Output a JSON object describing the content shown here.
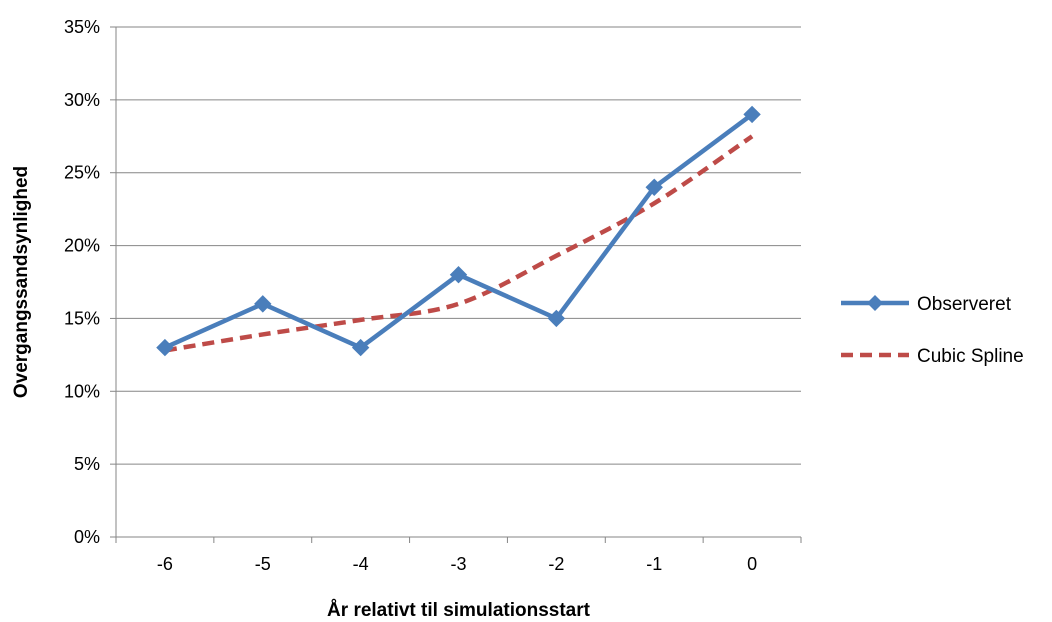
{
  "chart_data": {
    "type": "line",
    "title": "",
    "xlabel": "År relativt til simulationsstart",
    "ylabel": "Overgangssandsynlighed",
    "x": [
      -6,
      -5,
      -4,
      -3,
      -2,
      -1,
      0
    ],
    "x_tick_labels": [
      "-6",
      "-5",
      "-4",
      "-3",
      "-2",
      "-1",
      "0"
    ],
    "y_ticks": [
      0,
      5,
      10,
      15,
      20,
      25,
      30,
      35
    ],
    "y_tick_labels": [
      "0%",
      "5%",
      "10%",
      "15%",
      "20%",
      "25%",
      "30%",
      "35%"
    ],
    "ylim": [
      0,
      35
    ],
    "y_unit": "%",
    "grid": "horizontal",
    "legend_position": "right",
    "series": [
      {
        "name": "Observeret",
        "values": [
          13,
          16,
          13,
          18,
          15,
          24,
          29
        ],
        "color": "#4a7ebb",
        "style": "solid",
        "marker": "diamond"
      },
      {
        "name": "Cubic Spline",
        "values": [
          12.8,
          13.9,
          14.9,
          16.0,
          19.3,
          22.9,
          27.5
        ],
        "color": "#be4b48",
        "style": "dashed",
        "marker": "none"
      }
    ]
  }
}
